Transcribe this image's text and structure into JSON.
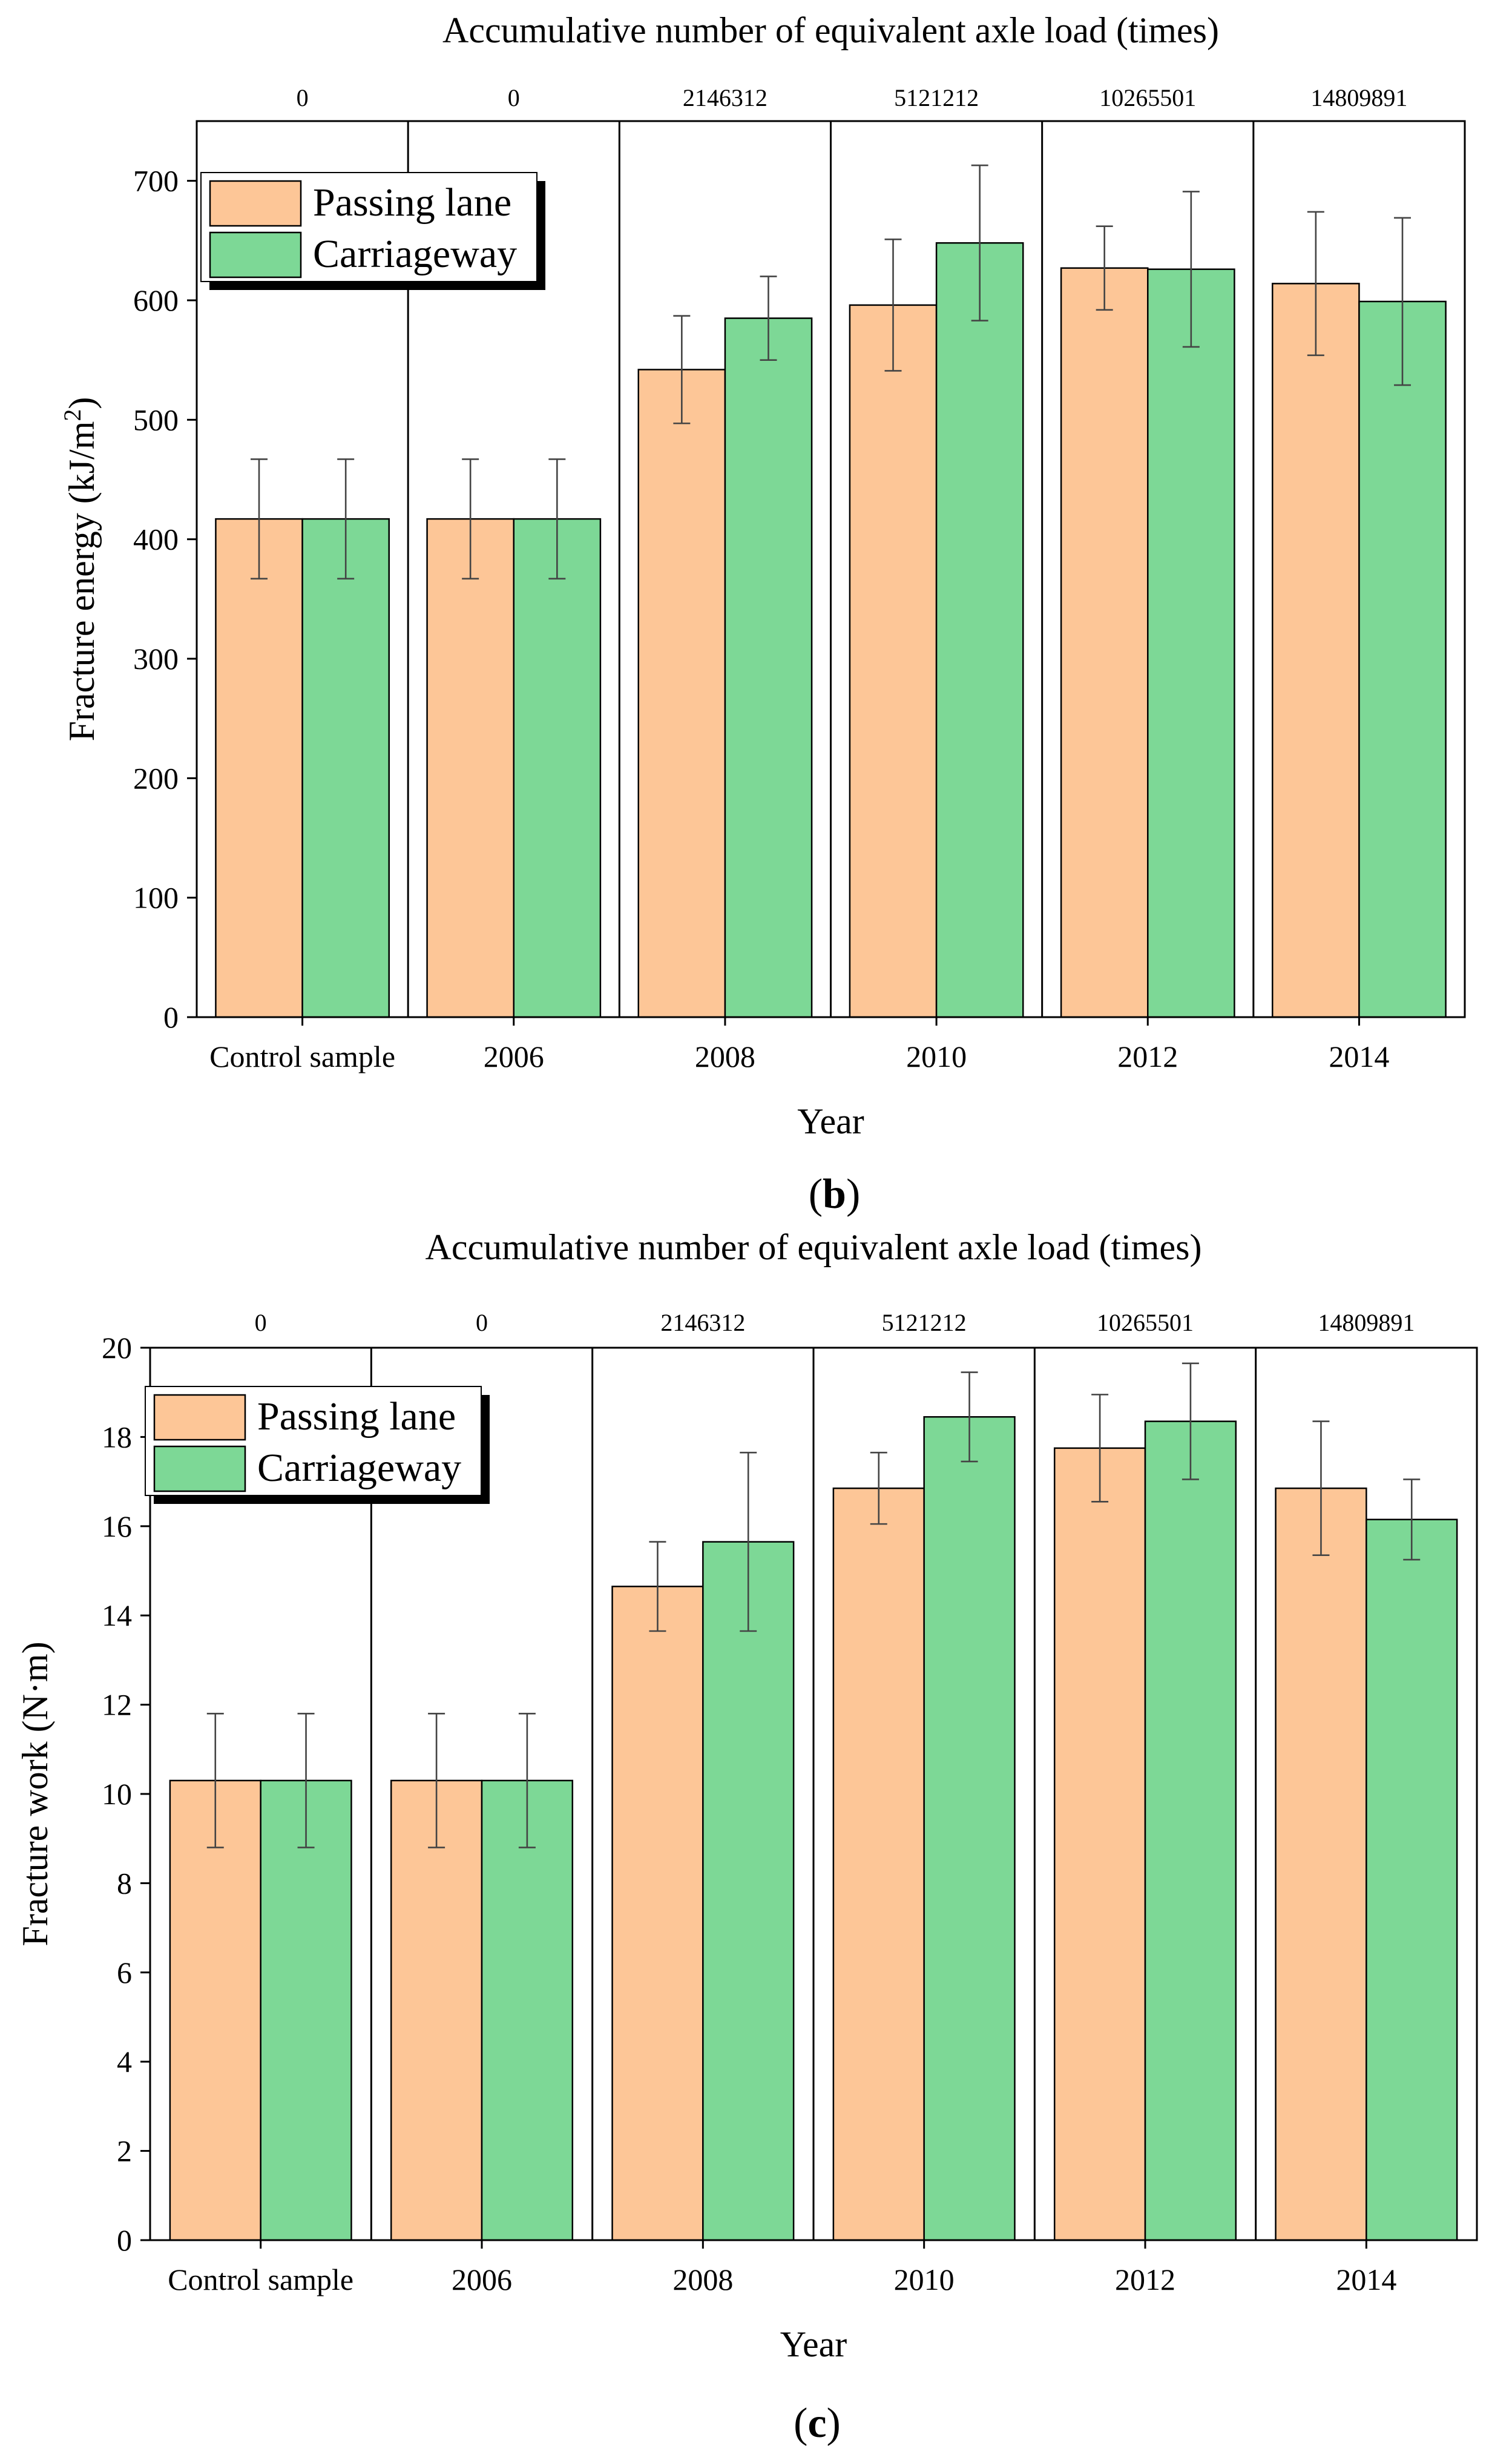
{
  "colors": {
    "passing_lane": "#FDC697",
    "carriageway": "#7DD896"
  },
  "chart_data": [
    {
      "type": "bar",
      "panel_label": "b",
      "title": "Accumulative number of equivalent axle load (times)",
      "xlabel": "Year",
      "ylabel": "Fracture energy (kJ/m",
      "ylabel_sup": "2",
      "ylabel_tail": ")",
      "ylim": [
        0,
        750
      ],
      "yticks": [
        0,
        100,
        200,
        300,
        400,
        500,
        600,
        700
      ],
      "categories": [
        "Control sample",
        "2006",
        "2008",
        "2010",
        "2012",
        "2014"
      ],
      "top_axis_labels": [
        "0",
        "0",
        "2146312",
        "5121212",
        "10265501",
        "14809891"
      ],
      "series": [
        {
          "name": "Passing lane",
          "values": [
            417,
            417,
            542,
            596,
            627,
            614
          ],
          "errors": [
            50,
            50,
            45,
            55,
            35,
            60
          ]
        },
        {
          "name": "Carriageway",
          "values": [
            417,
            417,
            585,
            648,
            626,
            599
          ],
          "errors": [
            50,
            50,
            35,
            65,
            65,
            70
          ]
        }
      ]
    },
    {
      "type": "bar",
      "panel_label": "c",
      "title": "Accumulative number of equivalent axle load (times)",
      "xlabel": "Year",
      "ylabel": "Fracture work (N·m)",
      "ylabel_sup": "",
      "ylabel_tail": "",
      "ylim": [
        0,
        20
      ],
      "yticks": [
        0,
        2,
        4,
        6,
        8,
        10,
        12,
        14,
        16,
        18,
        20
      ],
      "categories": [
        "Control sample",
        "2006",
        "2008",
        "2010",
        "2012",
        "2014"
      ],
      "top_axis_labels": [
        "0",
        "0",
        "2146312",
        "5121212",
        "10265501",
        "14809891"
      ],
      "series": [
        {
          "name": "Passing lane",
          "values": [
            10.3,
            10.3,
            14.65,
            16.85,
            17.75,
            16.85
          ],
          "errors": [
            1.5,
            1.5,
            1.0,
            0.8,
            1.2,
            1.5
          ]
        },
        {
          "name": "Carriageway",
          "values": [
            10.3,
            10.3,
            15.65,
            18.45,
            18.35,
            16.15
          ],
          "errors": [
            1.5,
            1.5,
            2.0,
            1.0,
            1.3,
            0.9
          ]
        }
      ]
    }
  ]
}
